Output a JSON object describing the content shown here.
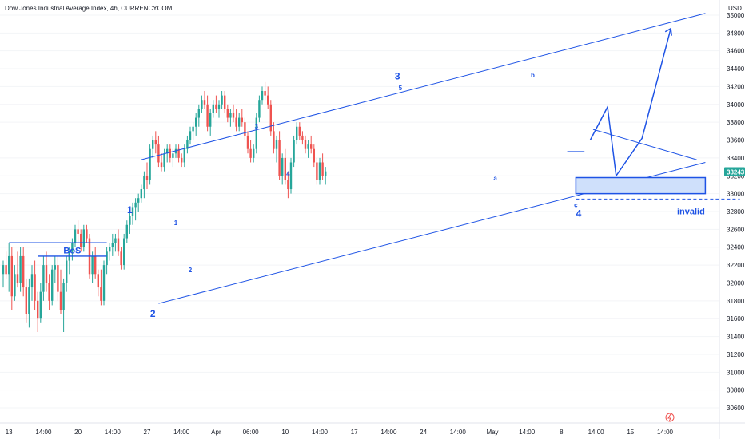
{
  "chart_data": {
    "type": "candlestick",
    "title": "Dow Jones Industrial Average Index, 4h, CURRENCYCOM",
    "y_unit": "USD",
    "ylim": [
      30500,
      35100
    ],
    "y_ticks": [
      30600,
      30800,
      31000,
      31200,
      31400,
      31600,
      31800,
      32000,
      32200,
      32400,
      32600,
      32800,
      33000,
      33200,
      33400,
      33600,
      33800,
      34000,
      34200,
      34400,
      34600,
      34800,
      35000
    ],
    "x_ticks": [
      "13",
      "14:00",
      "20",
      "14:00",
      "27",
      "14:00",
      "Apr",
      "06:00",
      "10",
      "14:00",
      "17",
      "14:00",
      "24",
      "14:00",
      "May",
      "14:00",
      "8",
      "14:00",
      "15",
      "14:00"
    ],
    "x_tick_bars": [
      2,
      14,
      26,
      38,
      50,
      62,
      74,
      86,
      98,
      110,
      122,
      134,
      146,
      158,
      170,
      182,
      194,
      206,
      218,
      230
    ],
    "last_price": "33243",
    "colors": {
      "up": "#26a69a",
      "down": "#ef5350",
      "annotation": "#1e53e5",
      "zone_fill": "#cfe0fb",
      "price_line": "#b2dfdb",
      "badge": "#26a69a"
    },
    "candles_ohlc": [
      [
        32100,
        32250,
        31950,
        32200
      ],
      [
        32200,
        32350,
        32050,
        32100
      ],
      [
        32100,
        32450,
        31900,
        32300
      ],
      [
        32300,
        32400,
        31700,
        31850
      ],
      [
        31850,
        32200,
        31800,
        32100
      ],
      [
        32100,
        32350,
        31950,
        32000
      ],
      [
        32000,
        32400,
        31900,
        32300
      ],
      [
        32300,
        32400,
        31850,
        31950
      ],
      [
        31950,
        32050,
        31550,
        31650
      ],
      [
        31650,
        32050,
        31500,
        31950
      ],
      [
        31950,
        32200,
        31800,
        32100
      ],
      [
        32100,
        32250,
        31700,
        31800
      ],
      [
        31800,
        31900,
        31450,
        31600
      ],
      [
        31600,
        32000,
        31550,
        31900
      ],
      [
        31900,
        32300,
        31800,
        32200
      ],
      [
        32200,
        32350,
        31900,
        32000
      ],
      [
        32000,
        32100,
        31700,
        31800
      ],
      [
        31800,
        32200,
        31750,
        32150
      ],
      [
        32150,
        32300,
        32000,
        32200
      ],
      [
        32200,
        32300,
        31800,
        31900
      ],
      [
        31900,
        32150,
        31650,
        31700
      ],
      [
        31700,
        32050,
        31450,
        32000
      ],
      [
        32000,
        32300,
        31900,
        32250
      ],
      [
        32250,
        32400,
        32100,
        32350
      ],
      [
        32350,
        32500,
        32250,
        32450
      ],
      [
        32450,
        32650,
        32400,
        32600
      ],
      [
        32600,
        32700,
        32450,
        32550
      ],
      [
        32550,
        32600,
        32350,
        32400
      ],
      [
        32400,
        32650,
        32350,
        32600
      ],
      [
        32600,
        32650,
        32450,
        32500
      ],
      [
        32500,
        32550,
        32050,
        32100
      ],
      [
        32100,
        32350,
        32000,
        32300
      ],
      [
        32300,
        32400,
        32050,
        32100
      ],
      [
        32100,
        32150,
        31850,
        31950
      ],
      [
        31950,
        32150,
        31750,
        31800
      ],
      [
        31800,
        32250,
        31750,
        32200
      ],
      [
        32200,
        32400,
        32100,
        32350
      ],
      [
        32350,
        32450,
        32250,
        32400
      ],
      [
        32400,
        32550,
        32300,
        32450
      ],
      [
        32450,
        32550,
        32350,
        32500
      ],
      [
        32500,
        32600,
        32300,
        32350
      ],
      [
        32350,
        32400,
        32150,
        32200
      ],
      [
        32200,
        32550,
        32150,
        32500
      ],
      [
        32500,
        32700,
        32450,
        32650
      ],
      [
        32650,
        32800,
        32550,
        32750
      ],
      [
        32750,
        32900,
        32650,
        32850
      ],
      [
        32850,
        32950,
        32700,
        32900
      ],
      [
        32900,
        33000,
        32800,
        32950
      ],
      [
        32950,
        33100,
        32900,
        33050
      ],
      [
        33050,
        33250,
        32950,
        33200
      ],
      [
        33200,
        33350,
        33050,
        33150
      ],
      [
        33150,
        33550,
        33100,
        33500
      ],
      [
        33500,
        33650,
        33400,
        33600
      ],
      [
        33600,
        33700,
        33450,
        33550
      ],
      [
        33550,
        33650,
        33300,
        33350
      ],
      [
        33350,
        33450,
        33250,
        33300
      ],
      [
        33300,
        33500,
        33250,
        33450
      ],
      [
        33450,
        33550,
        33350,
        33500
      ],
      [
        33500,
        33550,
        33350,
        33400
      ],
      [
        33400,
        33500,
        33300,
        33450
      ],
      [
        33450,
        33550,
        33400,
        33500
      ],
      [
        33500,
        33550,
        33350,
        33400
      ],
      [
        33400,
        33450,
        33300,
        33350
      ],
      [
        33350,
        33550,
        33300,
        33500
      ],
      [
        33500,
        33650,
        33450,
        33600
      ],
      [
        33600,
        33750,
        33550,
        33700
      ],
      [
        33700,
        33800,
        33600,
        33750
      ],
      [
        33750,
        33900,
        33650,
        33850
      ],
      [
        33850,
        34000,
        33750,
        33950
      ],
      [
        33950,
        34100,
        33900,
        34050
      ],
      [
        34050,
        34150,
        33950,
        34000
      ],
      [
        34000,
        34100,
        33700,
        33750
      ],
      [
        33750,
        33950,
        33650,
        33900
      ],
      [
        33900,
        34050,
        33850,
        34000
      ],
      [
        34000,
        34100,
        33900,
        33950
      ],
      [
        33950,
        34050,
        33850,
        34000
      ],
      [
        34000,
        34150,
        33950,
        34100
      ],
      [
        34100,
        34150,
        33900,
        33950
      ],
      [
        33950,
        34000,
        33800,
        33850
      ],
      [
        33850,
        33950,
        33750,
        33900
      ],
      [
        33900,
        34000,
        33800,
        33850
      ],
      [
        33850,
        33950,
        33700,
        33750
      ],
      [
        33750,
        33900,
        33700,
        33850
      ],
      [
        33850,
        33950,
        33750,
        33800
      ],
      [
        33800,
        33850,
        33600,
        33650
      ],
      [
        33650,
        33700,
        33450,
        33500
      ],
      [
        33500,
        33600,
        33350,
        33400
      ],
      [
        33400,
        33550,
        33350,
        33500
      ],
      [
        33500,
        33900,
        33450,
        33850
      ],
      [
        33850,
        34100,
        33800,
        34050
      ],
      [
        34050,
        34200,
        34000,
        34150
      ],
      [
        34150,
        34250,
        34050,
        34100
      ],
      [
        34100,
        34200,
        33950,
        34000
      ],
      [
        34000,
        34050,
        33650,
        33700
      ],
      [
        33700,
        33800,
        33450,
        33500
      ],
      [
        33500,
        33650,
        33350,
        33600
      ],
      [
        33600,
        33700,
        33150,
        33200
      ],
      [
        33200,
        33450,
        33100,
        33400
      ],
      [
        33400,
        33500,
        33100,
        33150
      ],
      [
        33150,
        33250,
        32950,
        33050
      ],
      [
        33050,
        33400,
        33000,
        33350
      ],
      [
        33350,
        33650,
        33300,
        33600
      ],
      [
        33600,
        33800,
        33550,
        33750
      ],
      [
        33750,
        33800,
        33600,
        33650
      ],
      [
        33650,
        33700,
        33550,
        33600
      ],
      [
        33600,
        33650,
        33450,
        33500
      ],
      [
        33500,
        33600,
        33400,
        33550
      ],
      [
        33550,
        33650,
        33450,
        33500
      ],
      [
        33500,
        33550,
        33300,
        33350
      ],
      [
        33350,
        33400,
        33100,
        33150
      ],
      [
        33150,
        33400,
        33100,
        33350
      ],
      [
        33350,
        33450,
        33150,
        33200
      ],
      [
        33200,
        33300,
        33100,
        33250
      ]
    ],
    "annotations": [
      "BoS",
      "1",
      "2",
      "1",
      "2",
      "3",
      "4",
      "3",
      "5",
      "b",
      "a",
      "c",
      "4",
      "invalid"
    ]
  }
}
